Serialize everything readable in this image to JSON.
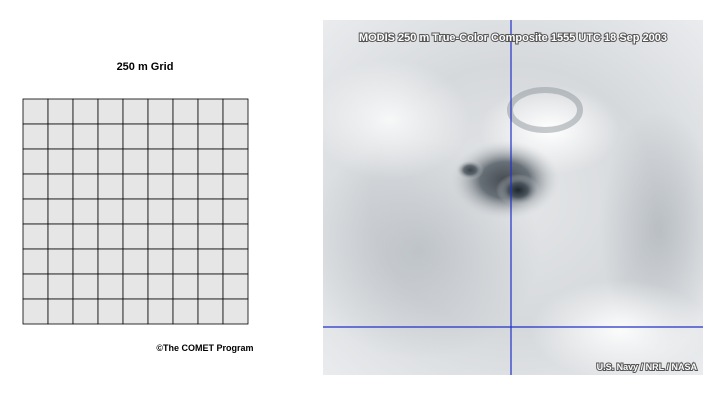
{
  "left_panel": {
    "title": "250 m Grid",
    "credit": "©The COMET Program"
  },
  "image_panel": {
    "title": "MODIS 250 m True-Color Composite  1555 UTC  18 Sep 2003",
    "credit": "U.S. Navy / NRL / NASA"
  }
}
